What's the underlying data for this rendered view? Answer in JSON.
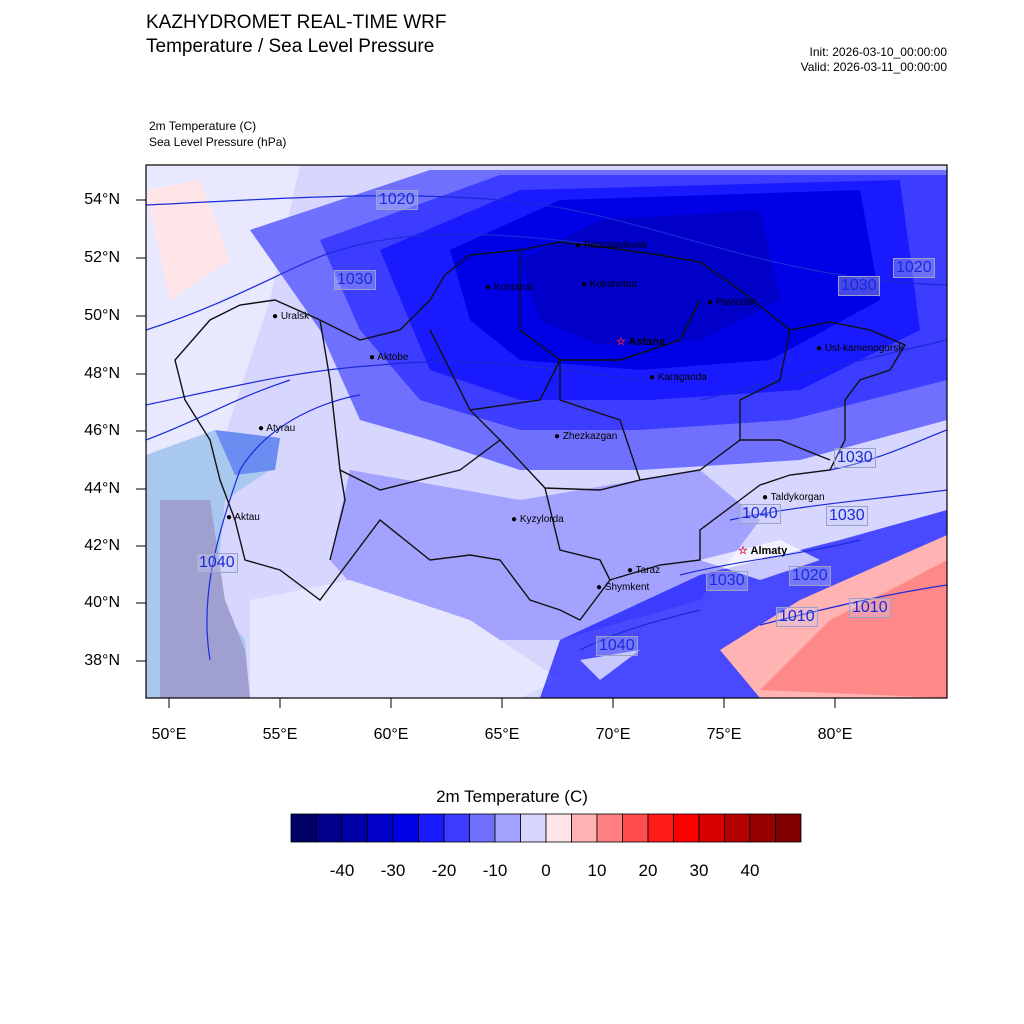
{
  "header": {
    "title": "KAZHYDROMET REAL-TIME WRF",
    "subtitle": "Temperature / Sea Level Pressure",
    "init": "Init: 2026-03-10_00:00:00",
    "valid": "Valid: 2026-03-11_00:00:00",
    "var1": "2m Temperature   (C)",
    "var2": "Sea Level Pressure   (hPa)"
  },
  "axes": {
    "lat_labels": [
      "54°N",
      "52°N",
      "50°N",
      "48°N",
      "46°N",
      "44°N",
      "42°N",
      "40°N",
      "38°N"
    ],
    "lon_labels": [
      "50°E",
      "55°E",
      "60°E",
      "65°E",
      "70°E",
      "75°E",
      "80°E"
    ]
  },
  "cities": [
    {
      "name": "Petropavlovsk"
    },
    {
      "name": "Kostanai"
    },
    {
      "name": "Kokshetau"
    },
    {
      "name": "Pavlodar"
    },
    {
      "name": "Uralsk"
    },
    {
      "name": "Aktobe"
    },
    {
      "name": "Astana",
      "capital": true
    },
    {
      "name": "Ust-kamenogorsk"
    },
    {
      "name": "Karaganda"
    },
    {
      "name": "Atyrau"
    },
    {
      "name": "Zhezkazgan"
    },
    {
      "name": "Taldykorgan"
    },
    {
      "name": "Aktau"
    },
    {
      "name": "Kyzylorda"
    },
    {
      "name": "Almaty",
      "capital": true
    },
    {
      "name": "Taraz"
    },
    {
      "name": "Shymkent"
    }
  ],
  "isobars": [
    "1020",
    "1030",
    "1020",
    "1030",
    "1030",
    "1040",
    "1030",
    "1040",
    "1020",
    "1030",
    "1010",
    "1010",
    "1040"
  ],
  "colorbar": {
    "title": "2m Temperature  (C)",
    "labels": [
      "-40",
      "-30",
      "-20",
      "-10",
      "0",
      "10",
      "20",
      "30",
      "40"
    ],
    "colors": [
      "#000066",
      "#00008c",
      "#0000a8",
      "#0000c8",
      "#0000e6",
      "#1a1aff",
      "#3d3dff",
      "#7070ff",
      "#a3a3ff",
      "#d6d6ff",
      "#ffe5e8",
      "#ffb3b3",
      "#ff8080",
      "#ff4d4d",
      "#ff1a1a",
      "#ff0000",
      "#d90000",
      "#b30000",
      "#990000",
      "#800000"
    ]
  }
}
